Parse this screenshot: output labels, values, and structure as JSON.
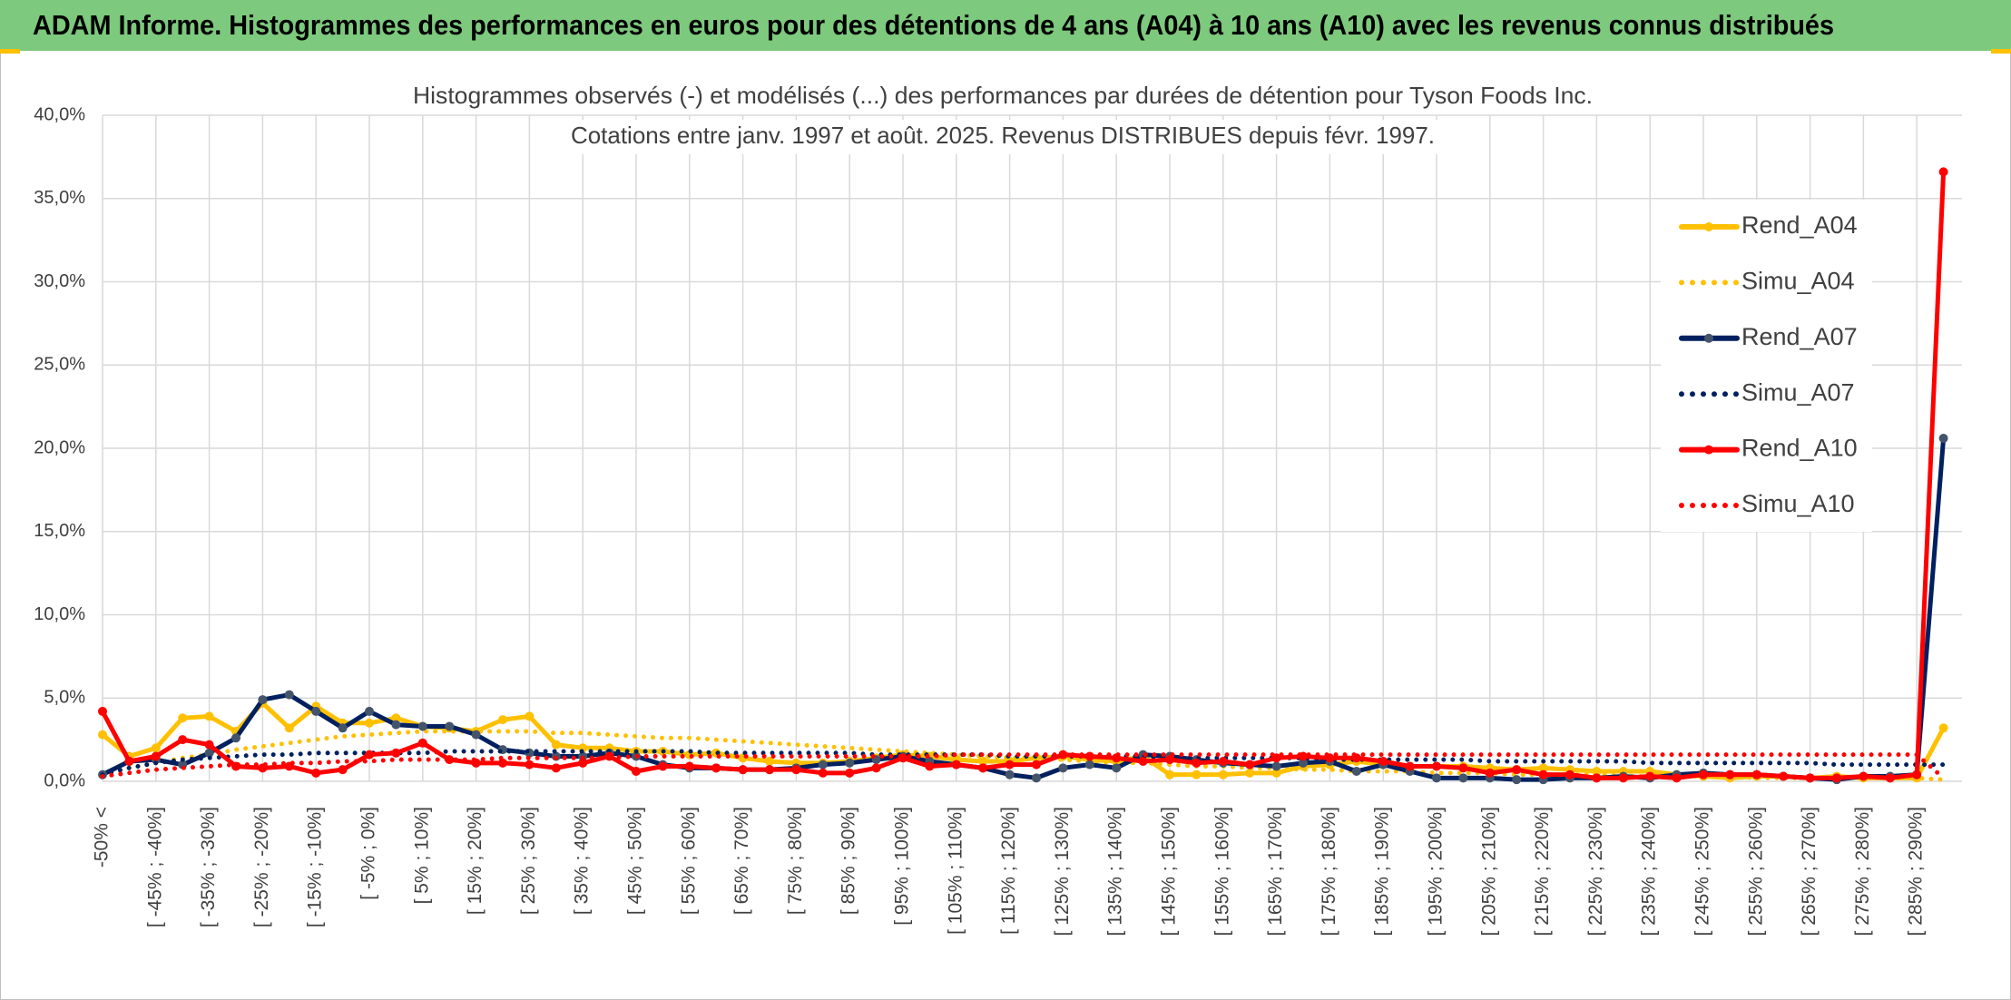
{
  "chart_data": {
    "type": "line",
    "header": "ADAM Informe. Histogrammes des performances en euros pour des détentions de 4 ans (A04) à 10 ans (A10) avec les revenus connus distribués",
    "title": "Histogrammes observés (-) et modélisés (...) des performances par durées de détention pour Tyson Foods Inc.",
    "subtitle": "Cotations entre janv. 1997 et août. 2025. Revenus DISTRIBUES depuis févr. 1997.",
    "categories": [
      "-50% <",
      null,
      "[ -45% ; -40%]",
      null,
      "[ -35% ; -30%]",
      null,
      "[ -25% ; -20%]",
      null,
      "[ -15% ; -10%]",
      null,
      "[ -5% ; 0%]",
      null,
      "[ 5% ; 10%]",
      null,
      "[ 15% ; 20%]",
      null,
      "[ 25% ; 30%]",
      null,
      "[ 35% ; 40%]",
      null,
      "[ 45% ; 50%]",
      null,
      "[ 55% ; 60%]",
      null,
      "[ 65% ; 70%]",
      null,
      "[ 75% ; 80%]",
      null,
      "[ 85% ; 90%]",
      null,
      "[ 95% ; 100%]",
      null,
      "[ 105% ; 110%]",
      null,
      "[ 115% ; 120%]",
      null,
      "[ 125% ; 130%]",
      null,
      "[ 135% ; 140%]",
      null,
      "[ 145% ; 150%]",
      null,
      "[ 155% ; 160%]",
      null,
      "[ 165% ; 170%]",
      null,
      "[ 175% ; 180%]",
      null,
      "[ 185% ; 190%]",
      null,
      "[ 195% ; 200%]",
      null,
      "[ 205% ; 210%]",
      null,
      "[ 215% ; 220%]",
      null,
      "[ 225% ; 230%]",
      null,
      "[ 235% ; 240%]",
      null,
      "[ 245% ; 250%]",
      null,
      "[ 255% ; 260%]",
      null,
      "[ 265% ; 270%]",
      null,
      "[ 275% ; 280%]",
      null,
      "[ 285% ; 290%]",
      null
    ],
    "series": [
      {
        "name": "Rend_A04",
        "color": "#FFC000",
        "style": "solid",
        "marker": true,
        "values": [
          2.8,
          1.5,
          2.0,
          3.8,
          3.9,
          3.0,
          4.7,
          3.2,
          4.5,
          3.5,
          3.5,
          3.8,
          3.3,
          3.2,
          3.0,
          3.7,
          3.9,
          2.2,
          2.0,
          2.0,
          1.8,
          1.8,
          1.6,
          1.7,
          1.4,
          1.2,
          1.1,
          1.1,
          1.2,
          1.4,
          1.6,
          1.5,
          1.3,
          1.2,
          1.2,
          1.4,
          1.5,
          1.3,
          1.2,
          1.5,
          0.4,
          0.4,
          0.4,
          0.5,
          0.5,
          0.9,
          1.0,
          1.2,
          1.0,
          0.9,
          0.9,
          0.9,
          0.8,
          0.7,
          0.8,
          0.7,
          0.6,
          0.6,
          0.6,
          0.4,
          0.3,
          0.2,
          0.3,
          0.3,
          0.2,
          0.3,
          0.2,
          0.2,
          0.2,
          3.2
        ]
      },
      {
        "name": "Simu_A04",
        "color": "#FFC000",
        "style": "dotted",
        "marker": false,
        "values": [
          0.5,
          0.8,
          1.1,
          1.4,
          1.6,
          1.9,
          2.1,
          2.3,
          2.5,
          2.7,
          2.8,
          2.9,
          3.0,
          3.0,
          3.0,
          3.0,
          3.0,
          2.9,
          2.9,
          2.8,
          2.7,
          2.6,
          2.6,
          2.5,
          2.4,
          2.3,
          2.2,
          2.1,
          2.0,
          1.9,
          1.8,
          1.7,
          1.6,
          1.5,
          1.4,
          1.4,
          1.3,
          1.2,
          1.1,
          1.1,
          1.0,
          0.9,
          0.9,
          0.8,
          0.8,
          0.7,
          0.7,
          0.6,
          0.6,
          0.6,
          0.5,
          0.5,
          0.5,
          0.4,
          0.4,
          0.4,
          0.4,
          0.3,
          0.3,
          0.3,
          0.3,
          0.3,
          0.2,
          0.2,
          0.2,
          0.2,
          0.2,
          0.2,
          0.2,
          0.1
        ]
      },
      {
        "name": "Rend_A07",
        "color": "#002060",
        "marker_color": "#44546A",
        "style": "solid",
        "marker": true,
        "values": [
          0.4,
          1.2,
          1.3,
          1.0,
          1.7,
          2.6,
          4.9,
          5.2,
          4.2,
          3.2,
          4.2,
          3.4,
          3.3,
          3.3,
          2.8,
          1.9,
          1.7,
          1.5,
          1.5,
          1.7,
          1.5,
          1.0,
          0.8,
          0.8,
          0.7,
          0.7,
          0.8,
          1.0,
          1.1,
          1.3,
          1.5,
          1.2,
          1.0,
          0.8,
          0.4,
          0.2,
          0.8,
          1.0,
          0.8,
          1.6,
          1.5,
          1.3,
          1.1,
          1.0,
          0.9,
          1.1,
          1.2,
          0.6,
          1.0,
          0.6,
          0.2,
          0.2,
          0.2,
          0.1,
          0.1,
          0.2,
          0.2,
          0.3,
          0.2,
          0.4,
          0.5,
          0.4,
          0.4,
          0.3,
          0.2,
          0.1,
          0.3,
          0.3,
          0.4,
          20.6
        ]
      },
      {
        "name": "Simu_A07",
        "color": "#002060",
        "style": "dotted",
        "marker": false,
        "values": [
          0.4,
          0.8,
          1.1,
          1.3,
          1.4,
          1.5,
          1.6,
          1.6,
          1.7,
          1.7,
          1.7,
          1.7,
          1.7,
          1.8,
          1.8,
          1.8,
          1.8,
          1.8,
          1.8,
          1.8,
          1.8,
          1.8,
          1.8,
          1.7,
          1.7,
          1.7,
          1.7,
          1.7,
          1.7,
          1.6,
          1.6,
          1.6,
          1.6,
          1.6,
          1.5,
          1.5,
          1.5,
          1.5,
          1.5,
          1.5,
          1.4,
          1.4,
          1.4,
          1.4,
          1.4,
          1.4,
          1.3,
          1.3,
          1.3,
          1.3,
          1.3,
          1.3,
          1.2,
          1.2,
          1.2,
          1.2,
          1.2,
          1.2,
          1.1,
          1.1,
          1.1,
          1.1,
          1.1,
          1.1,
          1.1,
          1.0,
          1.0,
          1.0,
          1.0,
          1.0
        ]
      },
      {
        "name": "Rend_A10",
        "color": "#FF0000",
        "style": "solid",
        "marker": true,
        "values": [
          4.2,
          1.2,
          1.5,
          2.5,
          2.2,
          0.9,
          0.8,
          0.9,
          0.5,
          0.7,
          1.6,
          1.7,
          2.3,
          1.3,
          1.1,
          1.1,
          1.0,
          0.8,
          1.1,
          1.5,
          0.6,
          0.9,
          0.9,
          0.8,
          0.7,
          0.7,
          0.7,
          0.5,
          0.5,
          0.8,
          1.4,
          0.9,
          1.0,
          0.8,
          1.0,
          1.0,
          1.6,
          1.5,
          1.4,
          1.2,
          1.3,
          1.1,
          1.2,
          1.0,
          1.4,
          1.5,
          1.4,
          1.4,
          1.2,
          0.9,
          0.9,
          0.8,
          0.5,
          0.7,
          0.4,
          0.4,
          0.2,
          0.2,
          0.3,
          0.2,
          0.4,
          0.4,
          0.4,
          0.3,
          0.2,
          0.2,
          0.3,
          0.2,
          0.4,
          36.6
        ]
      },
      {
        "name": "Simu_A10",
        "color": "#FF0000",
        "style": "dotted",
        "marker": false,
        "values": [
          0.3,
          0.5,
          0.7,
          0.8,
          0.9,
          1.0,
          1.0,
          1.1,
          1.1,
          1.2,
          1.2,
          1.3,
          1.3,
          1.3,
          1.3,
          1.4,
          1.4,
          1.4,
          1.4,
          1.4,
          1.5,
          1.5,
          1.5,
          1.5,
          1.5,
          1.5,
          1.5,
          1.5,
          1.5,
          1.5,
          1.5,
          1.5,
          1.6,
          1.6,
          1.6,
          1.6,
          1.6,
          1.6,
          1.6,
          1.6,
          1.6,
          1.6,
          1.6,
          1.6,
          1.6,
          1.6,
          1.6,
          1.6,
          1.6,
          1.6,
          1.6,
          1.6,
          1.6,
          1.6,
          1.6,
          1.6,
          1.6,
          1.6,
          1.6,
          1.6,
          1.6,
          1.6,
          1.6,
          1.6,
          1.6,
          1.6,
          1.6,
          1.6,
          1.6,
          0.2
        ]
      }
    ],
    "ylim": [
      0,
      40
    ],
    "yticks": [
      {
        "value": 0,
        "label": "0,0%"
      },
      {
        "value": 5,
        "label": "5,0%"
      },
      {
        "value": 10,
        "label": "10,0%"
      },
      {
        "value": 15,
        "label": "15,0%"
      },
      {
        "value": 20,
        "label": "20,0%"
      },
      {
        "value": 25,
        "label": "25,0%"
      },
      {
        "value": 30,
        "label": "30,0%"
      },
      {
        "value": 35,
        "label": "35,0%"
      },
      {
        "value": 40,
        "label": "40,0%"
      }
    ],
    "grid": true,
    "legend": "right"
  }
}
